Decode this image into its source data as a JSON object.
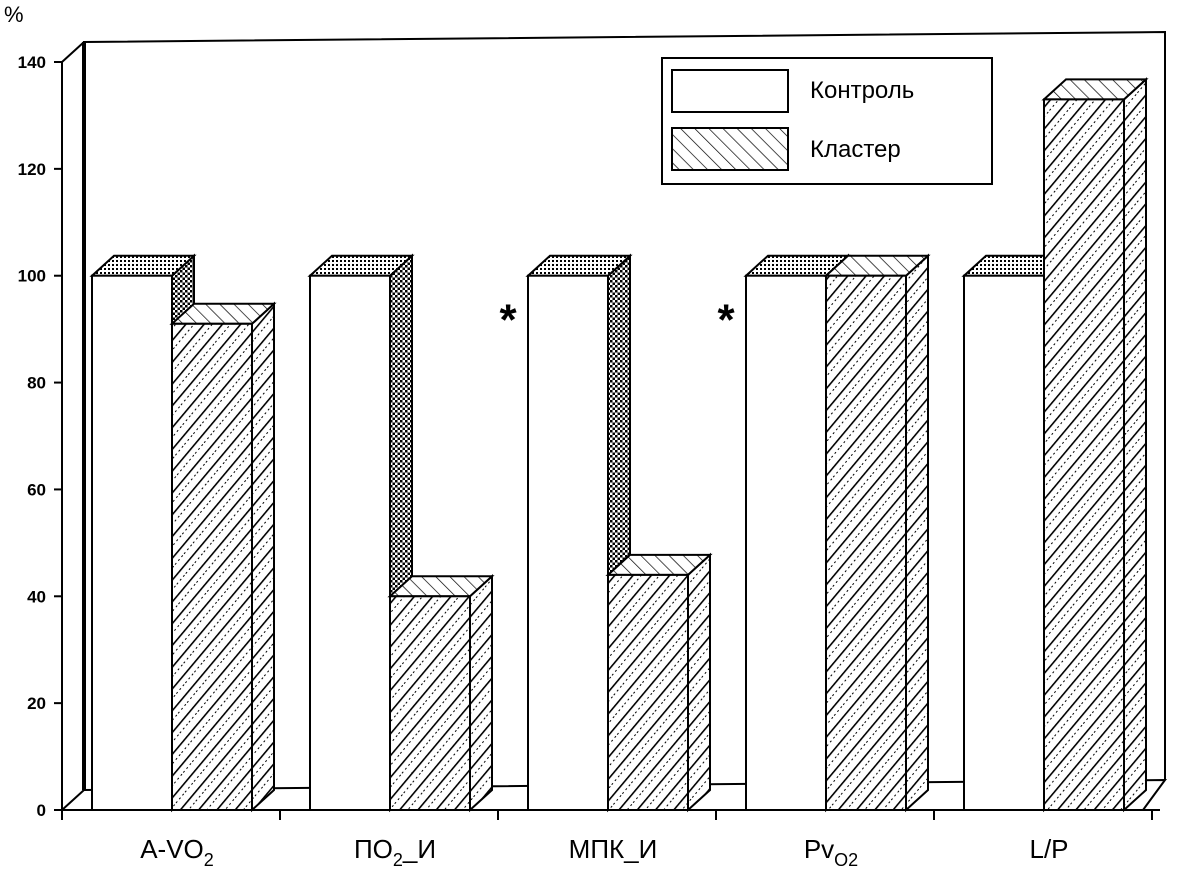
{
  "chart_data": {
    "type": "bar",
    "ylabel": "%",
    "ylim": [
      0,
      140
    ],
    "yticks": [
      0,
      20,
      40,
      60,
      80,
      100,
      120,
      140
    ],
    "grid": false,
    "legend_position": "top-right",
    "categories": [
      {
        "main": "A-VO",
        "sub": "2",
        "tail": ""
      },
      {
        "main": "ПО",
        "sub": "2",
        "tail": "_И"
      },
      {
        "main": "МПК_И",
        "sub": "",
        "tail": ""
      },
      {
        "main": "Pv",
        "sub": "O2",
        "tail": ""
      },
      {
        "main": "L/P",
        "sub": "",
        "tail": ""
      }
    ],
    "series": [
      {
        "name": "Контроль",
        "values": [
          100,
          100,
          100,
          100,
          100
        ]
      },
      {
        "name": "Кластер",
        "values": [
          91,
          40,
          44,
          100,
          133
        ]
      }
    ],
    "annotations": [
      {
        "category_index": 1,
        "text": "*",
        "y": 95
      },
      {
        "category_index": 2,
        "text": "*",
        "y": 95
      }
    ]
  }
}
